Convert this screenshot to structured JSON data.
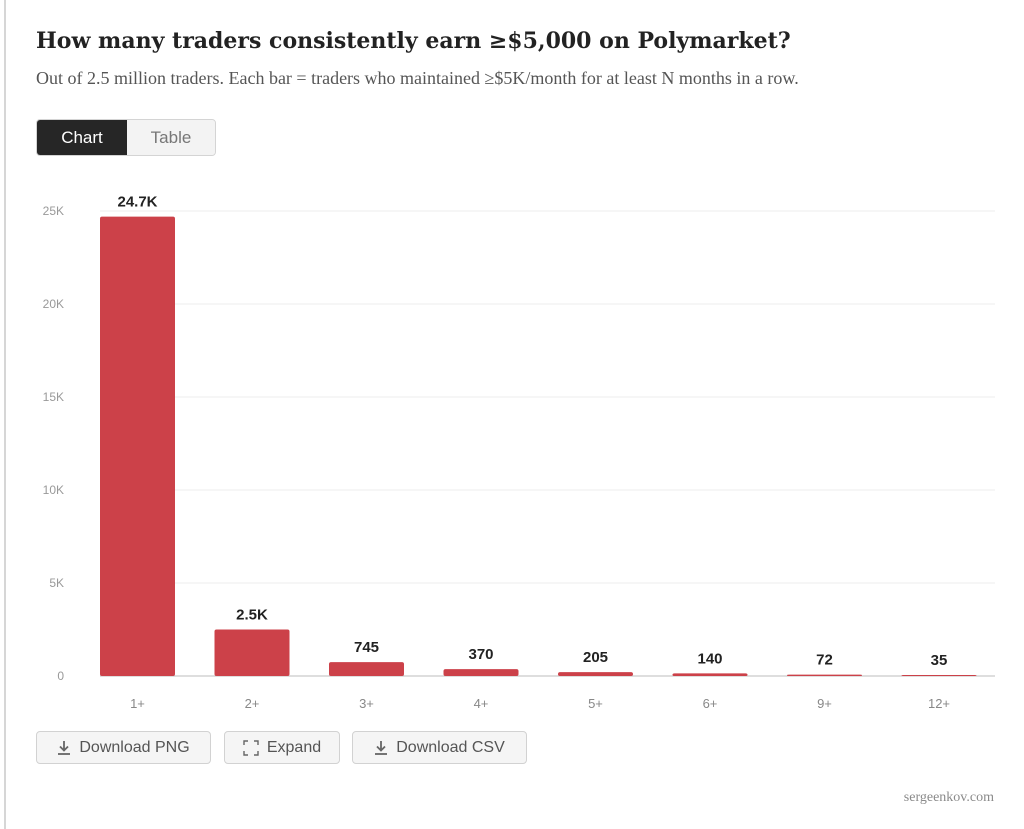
{
  "header": {
    "title": "How many traders consistently earn ≥$5,000 on Polymarket?",
    "subtitle": "Out of 2.5 million traders. Each bar = traders who maintained ≥$5K/month for at least N months in a row."
  },
  "view_toggle": {
    "chart_label": "Chart",
    "table_label": "Table",
    "selected": "Chart"
  },
  "chart_data": {
    "type": "bar",
    "categories": [
      "1+",
      "2+",
      "3+",
      "4+",
      "5+",
      "6+",
      "9+",
      "12+"
    ],
    "values": [
      24700,
      2500,
      745,
      370,
      205,
      140,
      72,
      35
    ],
    "data_labels": [
      "24.7K",
      "2.5K",
      "745",
      "370",
      "205",
      "140",
      "72",
      "35"
    ],
    "ylim": [
      0,
      25000
    ],
    "yticks": [
      0,
      5000,
      10000,
      15000,
      20000,
      25000
    ],
    "ytick_labels": [
      "0",
      "5K",
      "10K",
      "15K",
      "20K",
      "25K"
    ],
    "grid": true,
    "bar_color": "#cc4149"
  },
  "actions": {
    "download_png": "Download PNG",
    "expand": "Expand",
    "download_csv": "Download CSV"
  },
  "footer": {
    "credit": "sergeenkov.com"
  }
}
